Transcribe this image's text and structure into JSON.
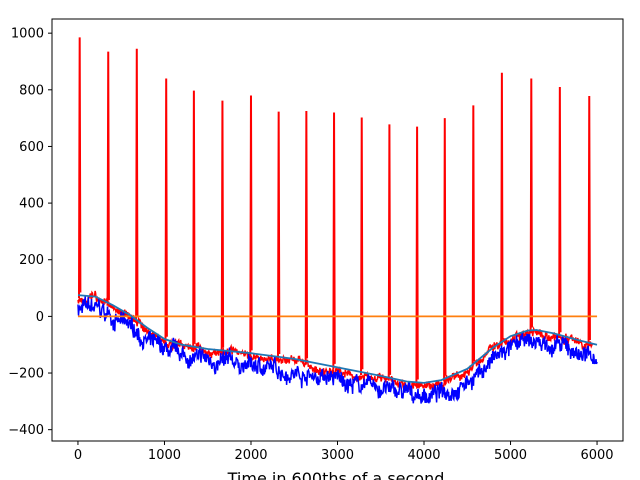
{
  "chart_data": {
    "type": "line",
    "title": "",
    "xlabel": "Time in 600ths of a second",
    "ylabel": "",
    "xlim": [
      -300,
      6300
    ],
    "ylim": [
      -440,
      1050
    ],
    "xticks": [
      0,
      1000,
      2000,
      3000,
      4000,
      5000,
      6000
    ],
    "yticks": [
      -400,
      -200,
      0,
      200,
      400,
      600,
      800,
      1000
    ],
    "grid": false,
    "legend": "none",
    "colors": {
      "raw": "#0000ff",
      "peaks": "#ff0000",
      "baseline": "#ff7f0e",
      "trend": "#1f77b4"
    },
    "series": [
      {
        "key": "trend",
        "x": [
          0,
          200,
          400,
          600,
          800,
          1000,
          1200,
          1500,
          2000,
          2500,
          3000,
          3500,
          3800,
          4000,
          4200,
          4500,
          4800,
          5000,
          5200,
          5300,
          5500,
          5800,
          6000
        ],
        "values": [
          75,
          70,
          40,
          5,
          -40,
          -80,
          -100,
          -115,
          -130,
          -150,
          -180,
          -210,
          -230,
          -235,
          -225,
          -185,
          -110,
          -70,
          -50,
          -48,
          -60,
          -85,
          -100
        ]
      },
      {
        "key": "baseline",
        "x": [
          0,
          6000
        ],
        "values": [
          0,
          0
        ]
      },
      {
        "key": "peaks",
        "x": [
          20,
          350,
          680,
          1020,
          1340,
          1670,
          2000,
          2320,
          2640,
          2960,
          3280,
          3600,
          3920,
          4240,
          4570,
          4900,
          5240,
          5570,
          5910
        ],
        "values": [
          985,
          935,
          945,
          840,
          797,
          762,
          780,
          723,
          725,
          720,
          702,
          678,
          670,
          700,
          745,
          860,
          840,
          810,
          778
        ]
      }
    ]
  }
}
